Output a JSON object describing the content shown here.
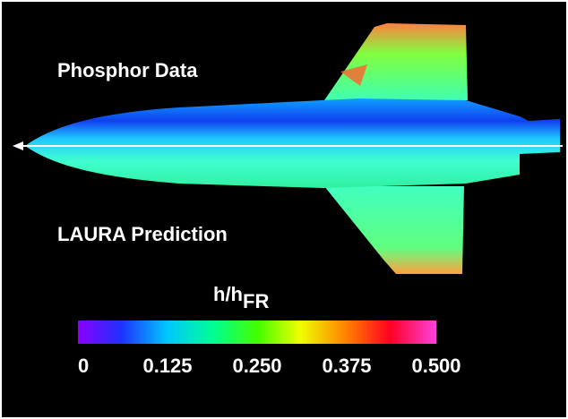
{
  "labels": {
    "top": "Phosphor Data",
    "bottom": "LAURA Prediction"
  },
  "colorbar": {
    "title_main": "h/h",
    "title_sub": "FR",
    "ticks": [
      "0",
      "0.125",
      "0.250",
      "0.375",
      "0.500"
    ]
  }
}
